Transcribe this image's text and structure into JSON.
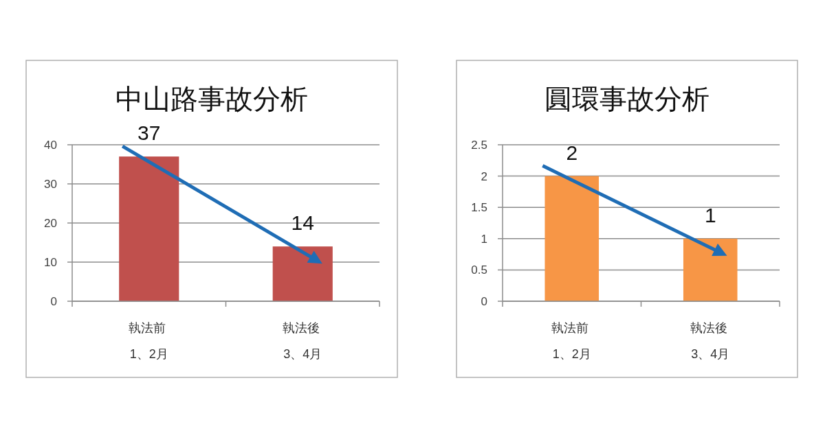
{
  "chart_data": [
    {
      "type": "bar",
      "title": "中山路事故分析",
      "categories": [
        "執法前\n1、2月",
        "執法後\n3、4月"
      ],
      "values": [
        37,
        14
      ],
      "color": "#c0504d",
      "ylim": [
        0,
        40
      ],
      "yticks": [
        0,
        10,
        20,
        30,
        40
      ],
      "grid": "y",
      "data_labels": true
    },
    {
      "type": "bar",
      "title": "圓環事故分析",
      "categories": [
        "執法前\n1、2月",
        "執法後\n3、4月"
      ],
      "values": [
        2,
        1
      ],
      "color": "#f79646",
      "ylim": [
        0,
        2.5
      ],
      "yticks": [
        0,
        0.5,
        1,
        1.5,
        2,
        2.5
      ],
      "grid": "y",
      "data_labels": true
    }
  ]
}
